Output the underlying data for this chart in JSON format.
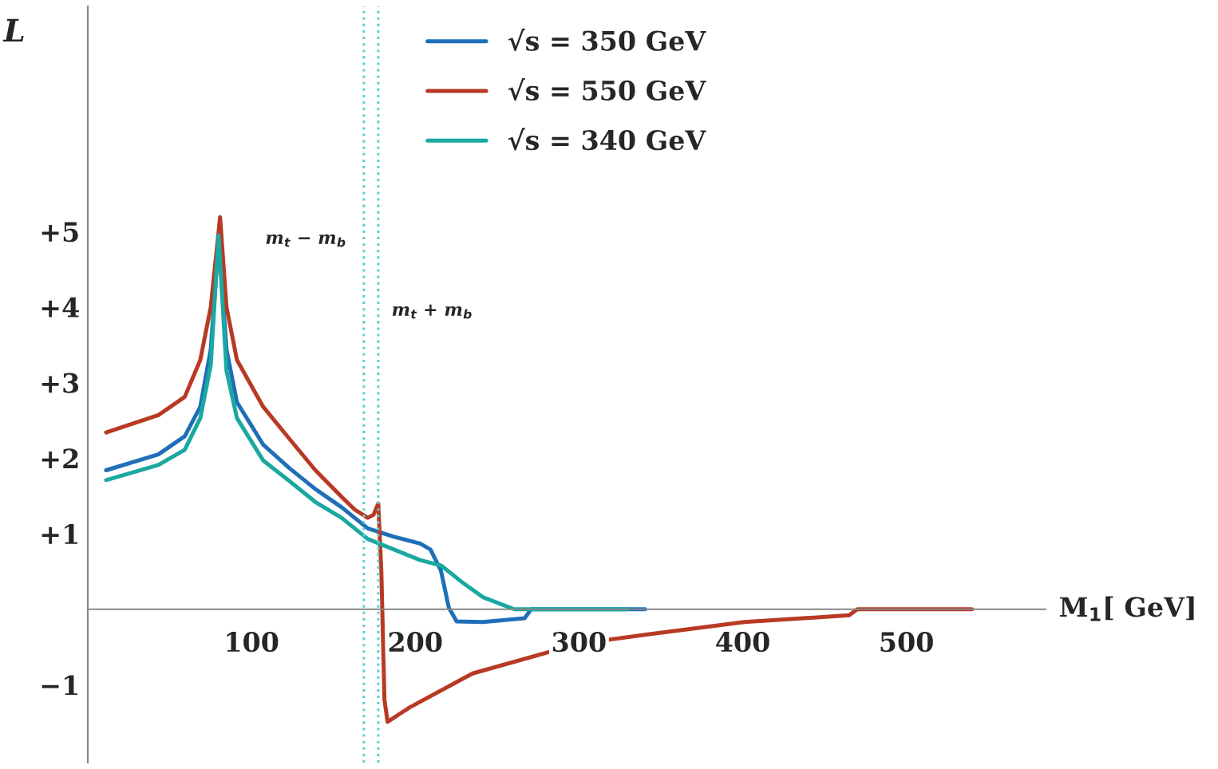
{
  "chart_data": {
    "type": "line",
    "xlabel": "M$_{1}$[ GeV]",
    "ylabel": "L",
    "xlim": [
      0,
      585
    ],
    "ylim": [
      -2.03,
      7.98
    ],
    "xticks": [
      100,
      200,
      300,
      400,
      500
    ],
    "yticks": [
      {
        "value": -1,
        "label": "−1"
      },
      {
        "value": 1,
        "label": "+1"
      },
      {
        "value": 2,
        "label": "+2"
      },
      {
        "value": 3,
        "label": "+3"
      },
      {
        "value": 4,
        "label": "+4"
      },
      {
        "value": 5,
        "label": "+5"
      }
    ],
    "grid": false,
    "legend": "top",
    "line_style": "solid",
    "marker": "none",
    "ref_lines": [
      {
        "axis": "x",
        "value": 168.6,
        "label": "m$_{t}$ − m$_{b}$",
        "color": "#5fcfcf",
        "line_style": "dotted"
      },
      {
        "axis": "x",
        "value": 177.4,
        "label": "m$_{t}$ + m$_{b}$",
        "color": "#5fcfcf",
        "line_style": "dotted"
      }
    ],
    "series": [
      {
        "name": "√s = 350 GeV",
        "color": "#1f6fb8",
        "x": [
          11.2,
          43.1,
          59.2,
          68.7,
          75.1,
          79.9,
          84.7,
          91.1,
          107.1,
          123,
          139,
          155,
          171,
          187,
          203,
          209.3,
          215.7,
          220.5,
          225.3,
          241.3,
          266.8,
          270.7,
          340.4
        ],
        "values": [
          1.84,
          2.05,
          2.29,
          2.68,
          3.44,
          4.9,
          3.44,
          2.74,
          2.18,
          1.87,
          1.59,
          1.35,
          1.07,
          0.96,
          0.87,
          0.79,
          0.51,
          0.02,
          -0.16,
          -0.17,
          -0.12,
          0,
          0
        ]
      },
      {
        "name": "√s = 550 GeV",
        "color": "#b83a24",
        "x": [
          11.2,
          43.1,
          59.2,
          68.7,
          75.1,
          80.8,
          84.7,
          91.1,
          107.1,
          123,
          139,
          155,
          163,
          171,
          174.5,
          177.4,
          179.3,
          181.2,
          183.1,
          196.5,
          235,
          299,
          343,
          401,
          465,
          470,
          540
        ],
        "values": [
          2.34,
          2.57,
          2.81,
          3.3,
          4.0,
          5.19,
          4.0,
          3.3,
          2.68,
          2.26,
          1.84,
          1.49,
          1.32,
          1.21,
          1.25,
          1.4,
          0.5,
          -1.2,
          -1.49,
          -1.3,
          -0.85,
          -0.46,
          -0.33,
          -0.17,
          -0.08,
          0,
          0
        ]
      },
      {
        "name": "√s = 340 GeV",
        "color": "#1aa8a0",
        "x": [
          11.2,
          43.1,
          59.2,
          68.7,
          75.1,
          79.9,
          84.7,
          91.1,
          107.1,
          123,
          139,
          155,
          171,
          187,
          203,
          215.7,
          228.5,
          241.3,
          260.5,
          329.2
        ],
        "values": [
          1.71,
          1.91,
          2.11,
          2.53,
          3.23,
          4.95,
          3.16,
          2.53,
          1.97,
          1.7,
          1.42,
          1.21,
          0.93,
          0.79,
          0.65,
          0.58,
          0.36,
          0.16,
          0,
          0
        ]
      }
    ]
  }
}
